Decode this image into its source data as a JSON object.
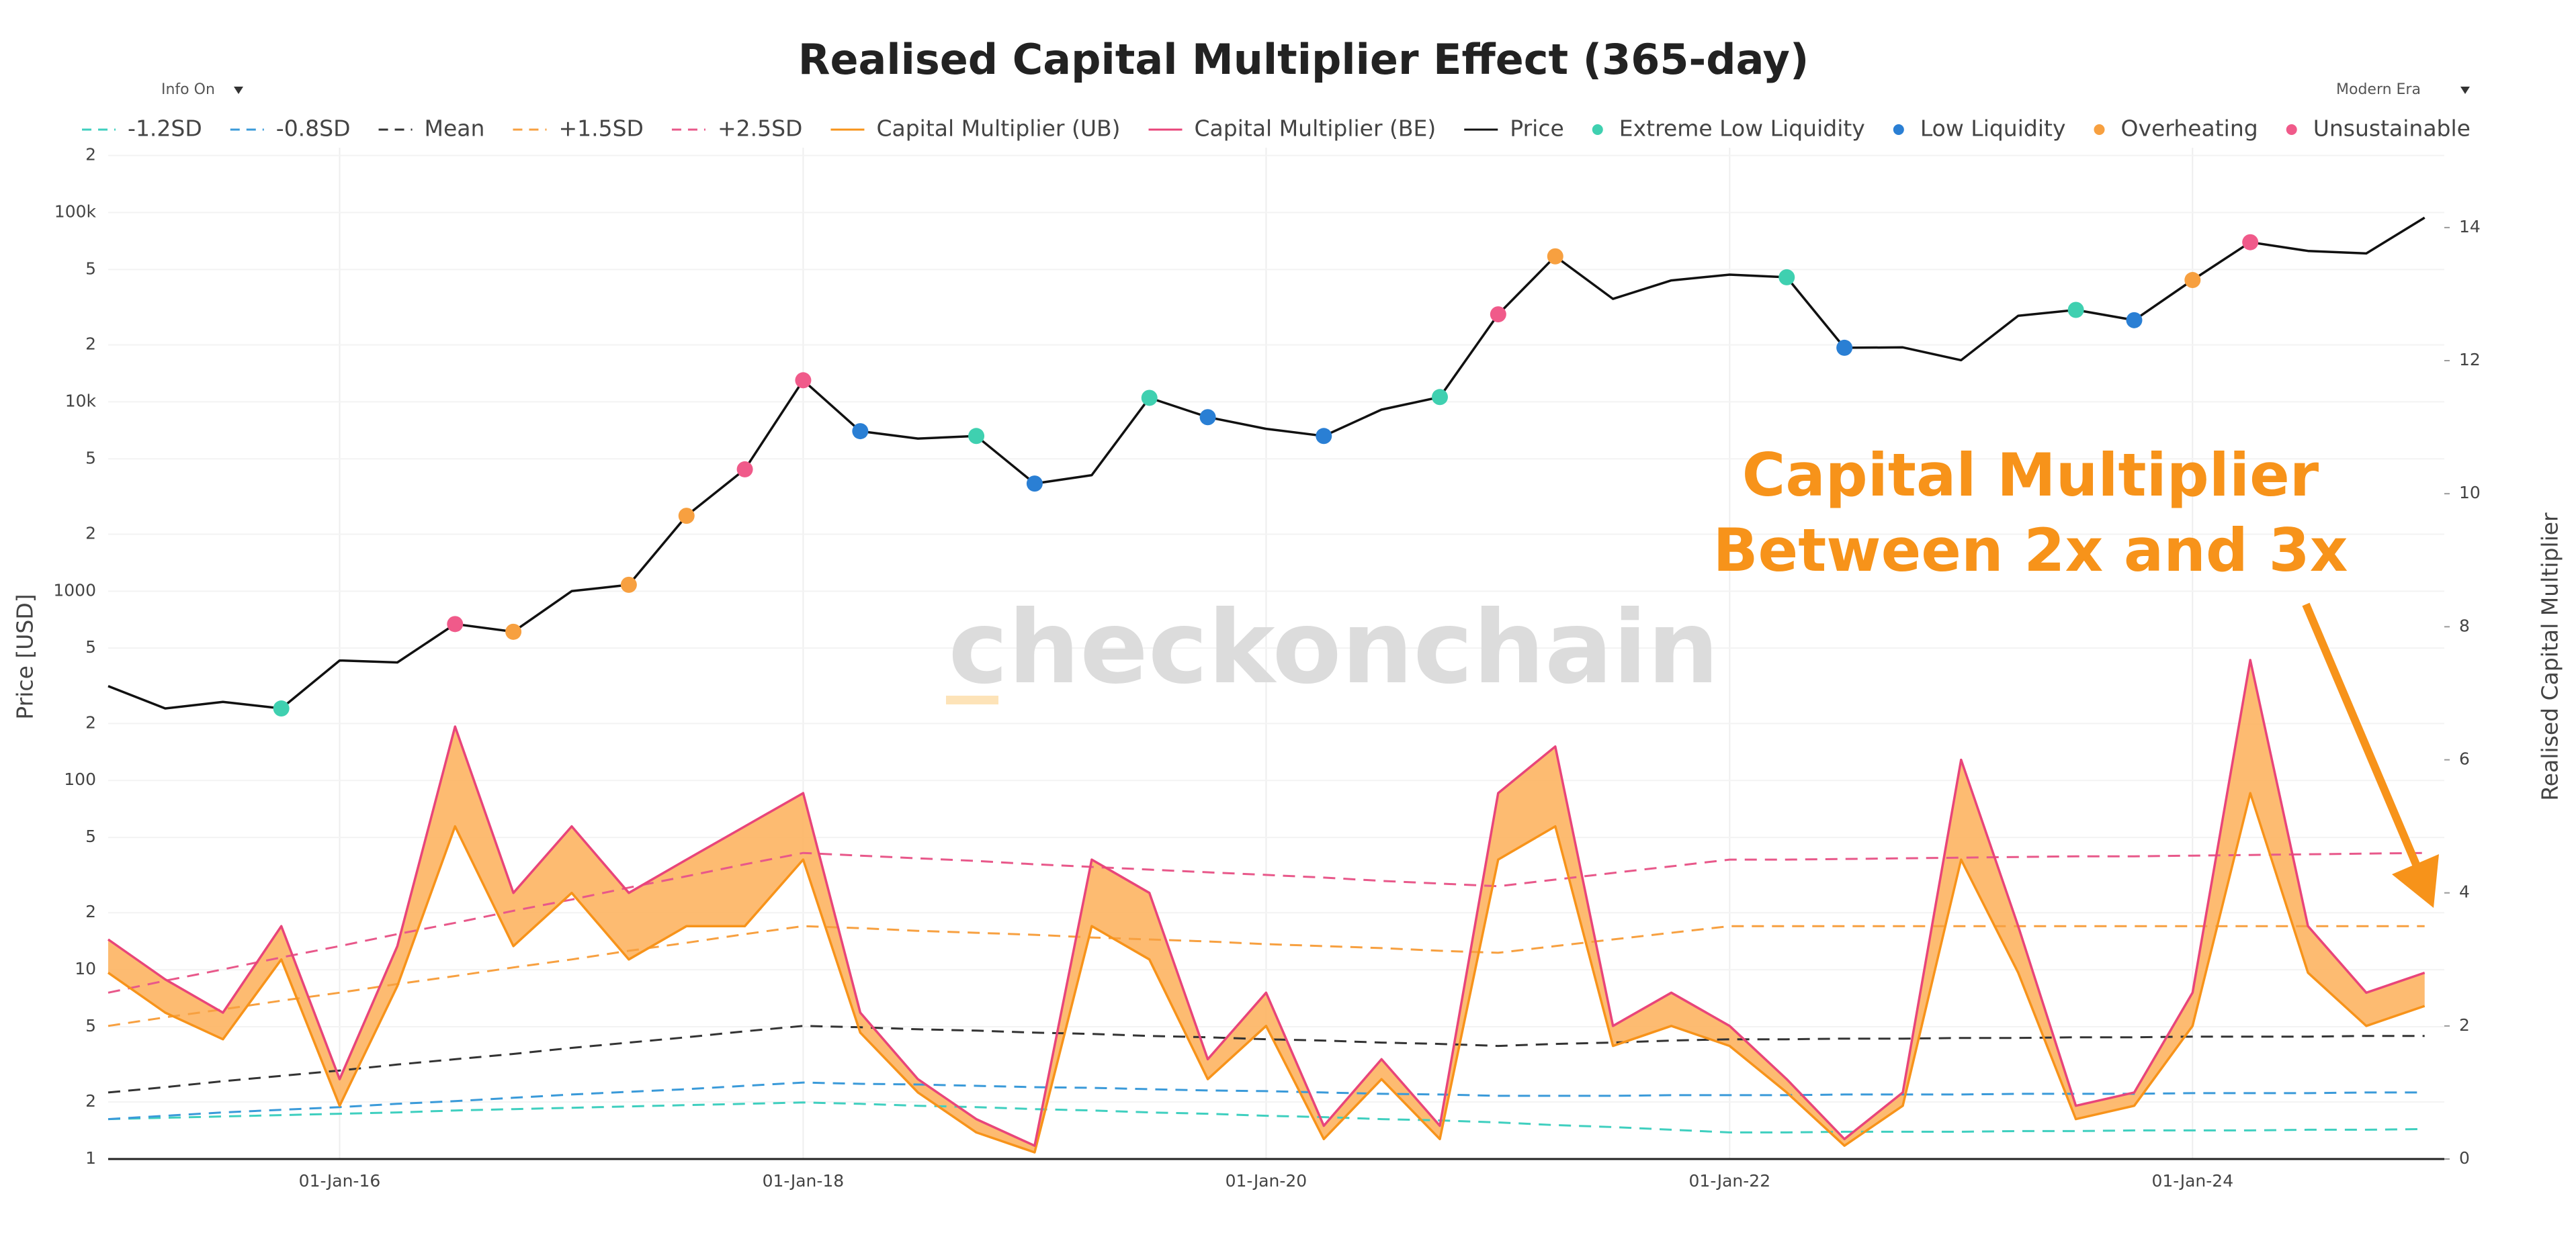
{
  "controls": {
    "left": "Info On",
    "right": "Modern Era"
  },
  "chart_data": {
    "type": "line",
    "title": "Realised Capital Multiplier Effect (365-day)",
    "ylabel": "Price [USD]",
    "y2label": "Realised Capital Multiplier",
    "annotation": [
      "Capital Multiplier",
      "Between 2x and 3x"
    ],
    "annotation_color": "#f7931a",
    "watermark": "checkonchain",
    "log_y": true,
    "grid": true,
    "legend": "top",
    "band_fill_color": "#fdb462",
    "xlim": [
      "2015-01-01",
      "2025-02-01"
    ],
    "xticks": [
      {
        "value": "2016-01-01",
        "label": "01-Jan-16"
      },
      {
        "value": "2018-01-01",
        "label": "01-Jan-18"
      },
      {
        "value": "2020-01-01",
        "label": "01-Jan-20"
      },
      {
        "value": "2022-01-01",
        "label": "01-Jan-22"
      },
      {
        "value": "2024-01-01",
        "label": "01-Jan-24"
      }
    ],
    "ylim": [
      1,
      220000
    ],
    "yticks": [
      1,
      2,
      5,
      10,
      {
        "value": 20,
        "label": "2"
      },
      {
        "value": 50,
        "label": "5"
      },
      100,
      {
        "value": 200,
        "label": "2"
      },
      {
        "value": 500,
        "label": "5"
      },
      1000,
      {
        "value": 2000,
        "label": "2"
      },
      {
        "value": 5000,
        "label": "5"
      },
      {
        "value": 10000,
        "label": "10k"
      },
      {
        "value": 20000,
        "label": "2"
      },
      {
        "value": 50000,
        "label": "5"
      },
      {
        "value": 100000,
        "label": "100k"
      },
      {
        "value": 200000,
        "label": "2"
      }
    ],
    "y2lim": [
      0,
      15.2
    ],
    "y2ticks": [
      0,
      2,
      4,
      6,
      8,
      10,
      12,
      14
    ],
    "x": [
      "2015-01-01",
      "2015-04-01",
      "2015-07-01",
      "2015-10-01",
      "2016-01-01",
      "2016-04-01",
      "2016-07-01",
      "2016-10-01",
      "2017-01-01",
      "2017-04-01",
      "2017-07-01",
      "2017-10-01",
      "2018-01-01",
      "2018-04-01",
      "2018-07-01",
      "2018-10-01",
      "2019-01-01",
      "2019-04-01",
      "2019-07-01",
      "2019-10-01",
      "2020-01-01",
      "2020-04-01",
      "2020-07-01",
      "2020-10-01",
      "2021-01-01",
      "2021-04-01",
      "2021-07-01",
      "2021-10-01",
      "2022-01-01",
      "2022-04-01",
      "2022-07-01",
      "2022-10-01",
      "2023-01-01",
      "2023-04-01",
      "2023-07-01",
      "2023-10-01",
      "2024-01-01",
      "2024-04-01",
      "2024-07-01",
      "2024-10-01",
      "2025-01-01"
    ],
    "series": [
      {
        "name": "-1.2SD",
        "color": "#3fcfbf",
        "axis": "y2",
        "dash": true,
        "values": [
          0.6,
          0.62,
          0.64,
          0.66,
          0.68,
          0.7,
          0.73,
          0.75,
          0.77,
          0.79,
          0.81,
          0.83,
          0.85,
          0.83,
          0.8,
          0.78,
          0.75,
          0.73,
          0.7,
          0.68,
          0.65,
          0.63,
          0.6,
          0.58,
          0.55,
          0.51,
          0.48,
          0.44,
          0.4,
          0.4,
          0.41,
          0.41,
          0.41,
          0.42,
          0.42,
          0.43,
          0.43,
          0.43,
          0.44,
          0.44,
          0.45
        ]
      },
      {
        "name": "-0.8SD",
        "color": "#3a9ad9",
        "axis": "y2",
        "dash": true,
        "values": [
          0.6,
          0.65,
          0.7,
          0.74,
          0.78,
          0.83,
          0.87,
          0.92,
          0.97,
          1.01,
          1.05,
          1.1,
          1.15,
          1.13,
          1.12,
          1.1,
          1.08,
          1.07,
          1.05,
          1.03,
          1.02,
          1.0,
          0.98,
          0.97,
          0.95,
          0.95,
          0.95,
          0.96,
          0.96,
          0.96,
          0.97,
          0.97,
          0.97,
          0.98,
          0.98,
          0.98,
          0.99,
          0.99,
          0.99,
          1.0,
          1.0
        ]
      },
      {
        "name": "Mean",
        "color": "#333333",
        "axis": "y2",
        "dash": true,
        "values": [
          1.0,
          1.08,
          1.17,
          1.25,
          1.33,
          1.42,
          1.5,
          1.58,
          1.67,
          1.75,
          1.83,
          1.92,
          2.0,
          1.98,
          1.95,
          1.93,
          1.9,
          1.88,
          1.85,
          1.83,
          1.8,
          1.78,
          1.75,
          1.73,
          1.7,
          1.73,
          1.75,
          1.78,
          1.8,
          1.8,
          1.81,
          1.81,
          1.82,
          1.82,
          1.83,
          1.83,
          1.84,
          1.84,
          1.84,
          1.85,
          1.85
        ]
      },
      {
        "name": "+1.5SD",
        "color": "#f7a040",
        "axis": "y2",
        "dash": true,
        "values": [
          2.0,
          2.13,
          2.25,
          2.38,
          2.5,
          2.63,
          2.75,
          2.88,
          3.0,
          3.13,
          3.25,
          3.38,
          3.5,
          3.47,
          3.43,
          3.4,
          3.37,
          3.33,
          3.3,
          3.27,
          3.23,
          3.2,
          3.17,
          3.13,
          3.1,
          3.2,
          3.3,
          3.4,
          3.5,
          3.5,
          3.5,
          3.5,
          3.5,
          3.5,
          3.5,
          3.5,
          3.5,
          3.5,
          3.5,
          3.5,
          3.5
        ]
      },
      {
        "name": "+2.5SD",
        "color": "#e8588a",
        "axis": "y2",
        "dash": true,
        "values": [
          2.5,
          2.68,
          2.85,
          3.03,
          3.2,
          3.38,
          3.55,
          3.73,
          3.9,
          4.08,
          4.25,
          4.43,
          4.6,
          4.56,
          4.52,
          4.48,
          4.43,
          4.39,
          4.35,
          4.31,
          4.27,
          4.23,
          4.18,
          4.14,
          4.1,
          4.2,
          4.3,
          4.4,
          4.5,
          4.5,
          4.51,
          4.52,
          4.53,
          4.54,
          4.55,
          4.55,
          4.56,
          4.57,
          4.58,
          4.59,
          4.6
        ]
      },
      {
        "name": "Capital Multiplier (UB)",
        "color": "#f7931a",
        "axis": "y2",
        "values": [
          2.8,
          2.2,
          1.8,
          3.0,
          0.8,
          2.6,
          5.0,
          3.2,
          4.0,
          3.0,
          3.5,
          3.5,
          4.5,
          1.9,
          1.0,
          0.4,
          0.1,
          3.5,
          3.0,
          1.2,
          2.0,
          0.3,
          1.2,
          0.3,
          4.5,
          5.0,
          1.7,
          2.0,
          1.7,
          1.0,
          0.2,
          0.8,
          4.5,
          2.8,
          0.6,
          0.8,
          2.0,
          5.5,
          2.8,
          2.0,
          2.3
        ]
      },
      {
        "name": "Capital Multiplier (BE)",
        "color": "#e8457a",
        "axis": "y2",
        "values": [
          3.3,
          2.7,
          2.2,
          3.5,
          1.2,
          3.2,
          6.5,
          4.0,
          5.0,
          4.0,
          4.5,
          5.0,
          5.5,
          2.2,
          1.2,
          0.6,
          0.2,
          4.5,
          4.0,
          1.5,
          2.5,
          0.5,
          1.5,
          0.5,
          5.5,
          6.2,
          2.0,
          2.5,
          2.0,
          1.2,
          0.3,
          1.0,
          6.0,
          3.5,
          0.8,
          1.0,
          2.5,
          7.5,
          3.5,
          2.5,
          2.8
        ]
      },
      {
        "name": "Price",
        "color": "#111111",
        "values": [
          315,
          240,
          260,
          240,
          430,
          420,
          670,
          610,
          1000,
          1080,
          2500,
          4400,
          13000,
          7000,
          6400,
          6600,
          3700,
          4100,
          10500,
          8300,
          7200,
          6600,
          9100,
          10600,
          29000,
          58700,
          35000,
          43800,
          47000,
          45500,
          19300,
          19400,
          16600,
          28500,
          30600,
          27000,
          44000,
          69700,
          62700,
          60800,
          94000
        ]
      },
      {
        "name": "Extreme Low Liquidity",
        "color": "#3fd0b0",
        "kind": "markers",
        "values": [
          null,
          null,
          null,
          240,
          null,
          null,
          null,
          null,
          null,
          null,
          null,
          null,
          null,
          null,
          null,
          6600,
          null,
          null,
          10500,
          null,
          null,
          null,
          null,
          10600,
          null,
          null,
          null,
          null,
          null,
          45500,
          null,
          null,
          null,
          null,
          30600,
          null,
          null,
          null,
          null,
          null,
          null
        ]
      },
      {
        "name": "Low Liquidity",
        "color": "#2a7fd4",
        "kind": "markers",
        "values": [
          null,
          null,
          null,
          null,
          null,
          null,
          null,
          null,
          null,
          null,
          null,
          null,
          null,
          7000,
          null,
          null,
          3700,
          null,
          null,
          8300,
          null,
          6600,
          null,
          null,
          null,
          null,
          null,
          null,
          null,
          null,
          19300,
          null,
          null,
          null,
          null,
          27000,
          null,
          null,
          null,
          null,
          null
        ]
      },
      {
        "name": "Overheating",
        "color": "#f7a040",
        "kind": "markers",
        "values": [
          null,
          null,
          null,
          null,
          null,
          null,
          null,
          610,
          null,
          1080,
          2500,
          null,
          null,
          null,
          null,
          null,
          null,
          null,
          null,
          null,
          null,
          null,
          null,
          null,
          null,
          58700,
          null,
          null,
          null,
          null,
          null,
          null,
          null,
          null,
          null,
          null,
          44000,
          null,
          null,
          null,
          null
        ]
      },
      {
        "name": "Unsustainable",
        "color": "#f05a8a",
        "kind": "markers",
        "values": [
          null,
          null,
          null,
          null,
          null,
          null,
          670,
          null,
          null,
          null,
          null,
          4400,
          13000,
          null,
          null,
          null,
          null,
          null,
          null,
          null,
          null,
          null,
          null,
          null,
          29000,
          null,
          null,
          null,
          null,
          null,
          null,
          null,
          null,
          null,
          null,
          null,
          null,
          69700,
          null,
          null,
          null
        ]
      }
    ]
  }
}
